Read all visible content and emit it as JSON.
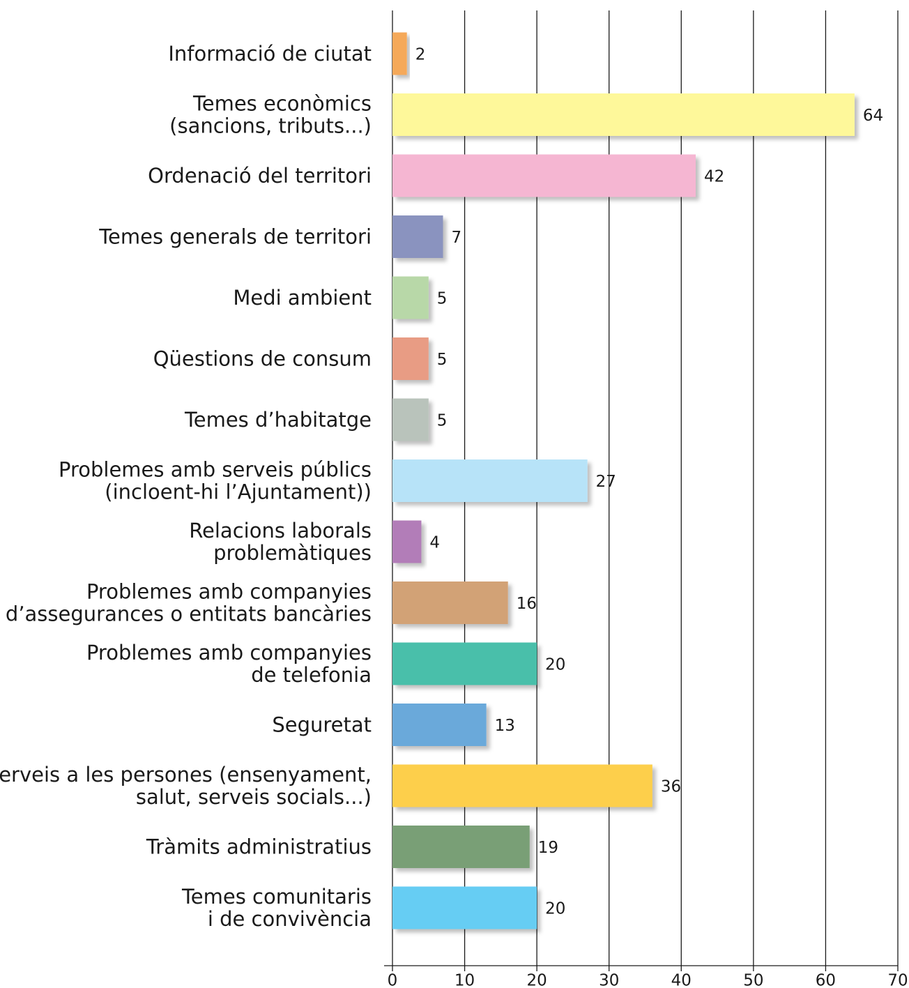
{
  "chart_data": {
    "type": "hbar",
    "categories": [
      [
        "Informació de ciutat"
      ],
      [
        "Temes econòmics",
        "(sancions, tributs...)"
      ],
      [
        "Ordenació del territori"
      ],
      [
        "Temes generals de territori"
      ],
      [
        "Medi ambient"
      ],
      [
        "Qüestions de consum"
      ],
      [
        "Temes d’habitatge"
      ],
      [
        "Problemes amb serveis públics",
        "(incloent-hi l’Ajuntament))"
      ],
      [
        "Relacions laborals",
        "problemàtiques"
      ],
      [
        "Problemes amb companyies",
        "d’assegurances o entitats bancàries"
      ],
      [
        "Problemes amb companyies",
        "de telefonia"
      ],
      [
        "Seguretat"
      ],
      [
        "Serveis a les persones (ensenyament,",
        "salut, serveis socials...)"
      ],
      [
        "Tràmits administratius"
      ],
      [
        "Temes comunitaris",
        "i de convivència"
      ]
    ],
    "values": [
      2,
      64,
      42,
      7,
      5,
      5,
      5,
      27,
      4,
      16,
      20,
      13,
      36,
      19,
      20
    ],
    "colors": [
      "#f5a95a",
      "#fef89a",
      "#f5b6d2",
      "#8a93bf",
      "#b8d8a8",
      "#e89c84",
      "#b9c3bb",
      "#b7e3f8",
      "#b27db8",
      "#d2a276",
      "#49bfaa",
      "#6aa9da",
      "#fdcf4c",
      "#799f76",
      "#66cdf3"
    ],
    "xlim": [
      0,
      70
    ],
    "xticks": [
      0,
      10,
      20,
      30,
      40,
      50,
      60,
      70
    ],
    "grid": true
  }
}
